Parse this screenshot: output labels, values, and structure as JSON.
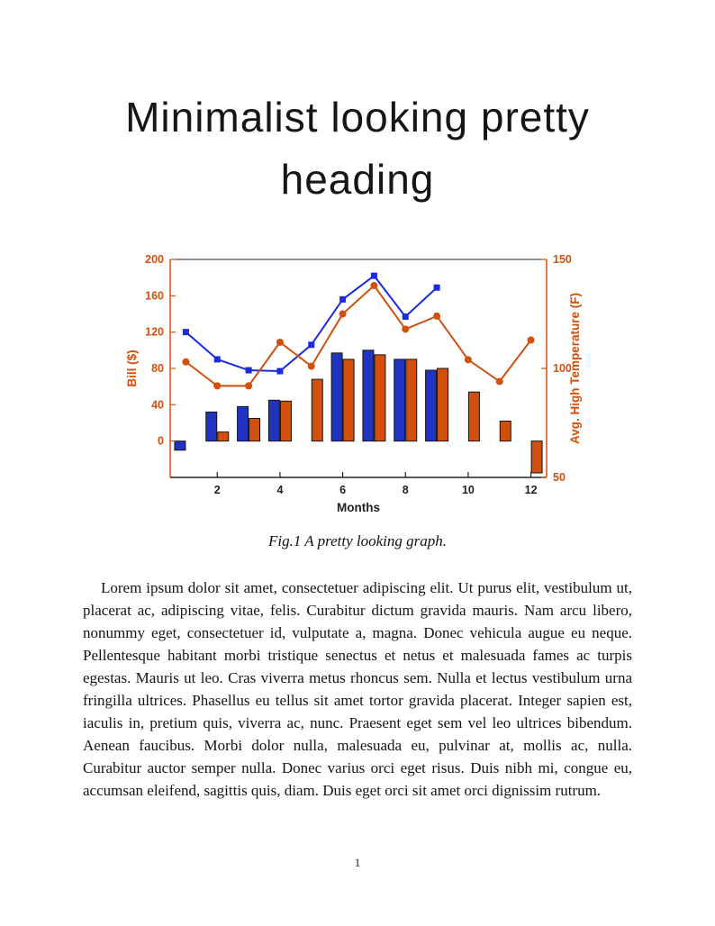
{
  "page": {
    "heading": "Minimalist looking pretty heading",
    "figure_caption": "Fig.1 A pretty looking graph.",
    "body_text": "Lorem ipsum dolor sit amet, consectetuer adipiscing elit. Ut purus elit, vestibulum ut, placerat ac, adipiscing vitae, felis. Curabitur dictum gravida mauris. Nam arcu libero, nonummy eget, consectetuer id, vulputate a, magna. Donec vehicula augue eu neque. Pellentesque habitant morbi tristique senectus et netus et malesuada fames ac turpis egestas. Mauris ut leo. Cras viverra metus rhoncus sem. Nulla et lectus vestibulum urna fringilla ultrices. Phasellus eu tellus sit amet tortor gravida placerat. Integer sapien est, iaculis in, pretium quis, viverra ac, nunc. Praesent eget sem vel leo ultrices bibendum. Aenean faucibus. Morbi dolor nulla, malesuada eu, pulvinar at, mollis ac, nulla. Curabitur auctor semper nulla. Donec varius orci eget risus. Duis nibh mi, congue eu, accumsan eleifend, sagittis quis, diam. Duis eget orci sit amet orci dignissim rutrum.",
    "page_number": "1"
  },
  "chart_data": {
    "type": "combo",
    "title": "",
    "xlabel": "Months",
    "x": [
      1,
      2,
      3,
      4,
      5,
      6,
      7,
      8,
      9,
      10,
      11,
      12
    ],
    "x_ticks": [
      2,
      4,
      6,
      8,
      10,
      12
    ],
    "left_axis": {
      "label": "Bill ($)",
      "range": [
        -40,
        200
      ],
      "ticks": [
        0,
        40,
        80,
        120,
        160,
        200
      ]
    },
    "right_axis": {
      "label": "Avg. High Temperature (F)",
      "range": [
        50,
        150
      ],
      "ticks": [
        50,
        100,
        150
      ]
    },
    "grid": false,
    "legend": "none",
    "series": [
      {
        "name": "bill-bars-blue",
        "type": "bar",
        "axis": "left",
        "values": [
          -10,
          32,
          38,
          45,
          null,
          97,
          100,
          90,
          78,
          null,
          null,
          null
        ]
      },
      {
        "name": "bill-bars-orange",
        "type": "bar",
        "axis": "left",
        "values": [
          null,
          10,
          25,
          44,
          68,
          90,
          95,
          90,
          80,
          54,
          22,
          -35
        ]
      },
      {
        "name": "bill-line-blue",
        "type": "line",
        "axis": "left",
        "marker": "square",
        "values": [
          120,
          90,
          78,
          77,
          106,
          156,
          182,
          137,
          169,
          null,
          null,
          null
        ]
      },
      {
        "name": "temperature-line-orange",
        "type": "line",
        "axis": "right",
        "marker": "circle",
        "values": [
          103,
          92,
          92,
          112,
          101,
          125,
          138,
          118,
          124,
          104,
          94,
          113
        ]
      }
    ],
    "colors": {
      "blue_bar": "#2233C2",
      "blue_line": "#1A2BE0",
      "orange": "#D2500E",
      "bar_edge": "#141414",
      "axis_black": "#222222"
    }
  }
}
